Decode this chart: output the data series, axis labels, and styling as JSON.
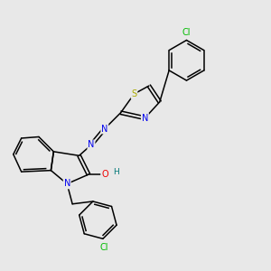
{
  "background_color": "#e8e8e8",
  "bond_color": "#000000",
  "atom_colors": {
    "S": "#aaaa00",
    "N": "#0000ee",
    "O": "#ee0000",
    "Cl": "#00bb00",
    "H": "#007777",
    "C": "#000000"
  },
  "font_size": 7.0,
  "lw": 1.1,
  "figsize": [
    3.0,
    3.0
  ],
  "dpi": 100
}
